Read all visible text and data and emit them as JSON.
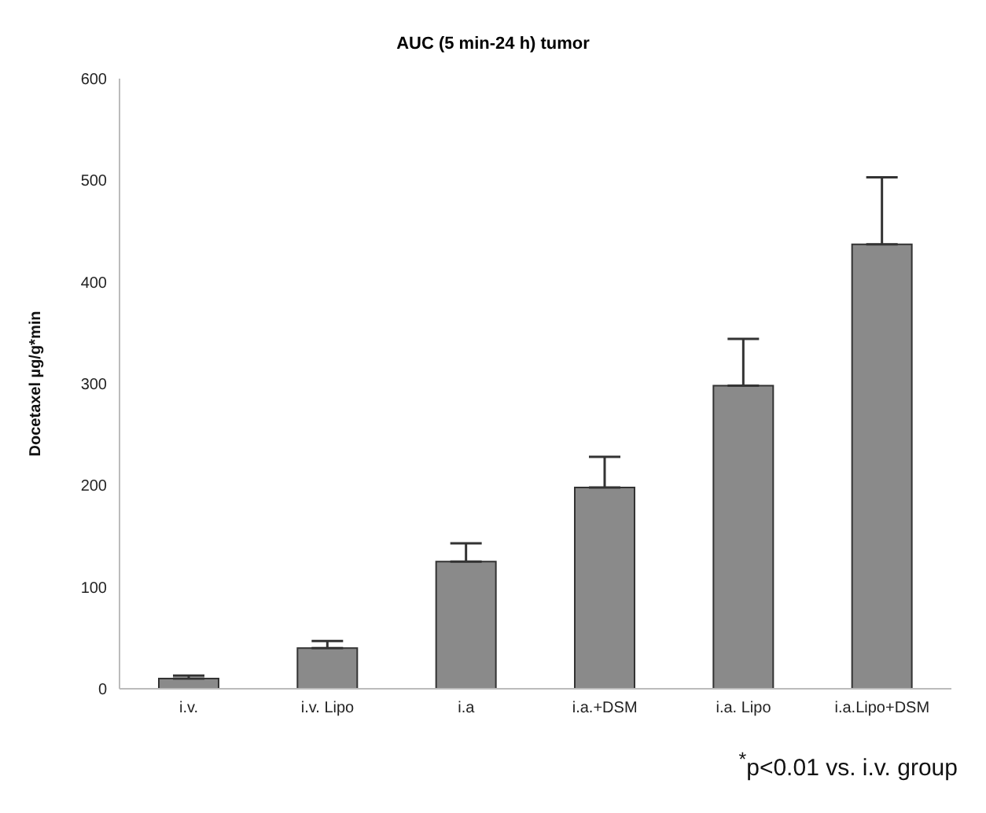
{
  "chart_data": {
    "type": "bar",
    "title": "AUC (5 min-24 h) tumor",
    "ylabel": "Docetaxel µg/g*min",
    "categories": [
      "i.v.",
      "i.v. Lipo",
      "i.a",
      "i.a.+DSM",
      "i.a. Lipo",
      "i.a.Lipo+DSM"
    ],
    "values": [
      10,
      40,
      125,
      198,
      298,
      437
    ],
    "errors": [
      [
        10,
        13
      ],
      [
        40,
        47
      ],
      [
        125,
        143
      ],
      [
        198,
        228
      ],
      [
        298,
        344
      ],
      [
        437,
        503
      ]
    ],
    "color": "#8a8a8a",
    "ylim": [
      0,
      600
    ],
    "yticks": [
      0,
      100,
      200,
      300,
      400,
      500,
      600
    ],
    "grid": false,
    "annotations": [
      "$^{*}$p<0.01 vs. i.v. group"
    ]
  }
}
